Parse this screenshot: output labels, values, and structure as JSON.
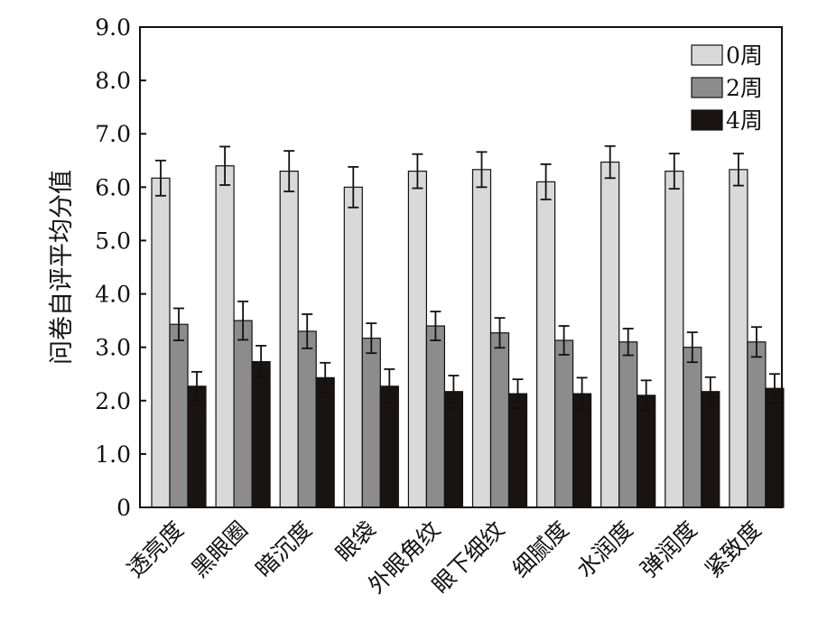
{
  "chart_data": {
    "type": "bar",
    "title": "",
    "xlabel": "",
    "ylabel": "问卷自评平均分值",
    "ylim": [
      0,
      9
    ],
    "yticks": [
      "0",
      "1.0",
      "2.0",
      "3.0",
      "4.0",
      "5.0",
      "6.0",
      "7.0",
      "8.0",
      "9.0"
    ],
    "categories": [
      "透亮度",
      "黑眼圈",
      "暗沉度",
      "眼袋",
      "外眼角纹",
      "眼下细纹",
      "细腻度",
      "水润度",
      "弹润度",
      "紧致度"
    ],
    "series": [
      {
        "name": "0周",
        "color": "#d9d9d9",
        "values": [
          6.17,
          6.4,
          6.3,
          6.0,
          6.3,
          6.33,
          6.1,
          6.47,
          6.3,
          6.33
        ],
        "errors": [
          0.33,
          0.36,
          0.38,
          0.38,
          0.32,
          0.33,
          0.33,
          0.3,
          0.33,
          0.3
        ]
      },
      {
        "name": "2周",
        "color": "#8c8c8c",
        "values": [
          3.43,
          3.5,
          3.3,
          3.17,
          3.4,
          3.27,
          3.13,
          3.1,
          3.0,
          3.1
        ],
        "errors": [
          0.3,
          0.36,
          0.32,
          0.28,
          0.27,
          0.28,
          0.27,
          0.25,
          0.28,
          0.28
        ]
      },
      {
        "name": "4周",
        "color": "#1a1313",
        "values": [
          2.27,
          2.73,
          2.43,
          2.27,
          2.17,
          2.13,
          2.13,
          2.1,
          2.17,
          2.23
        ],
        "errors": [
          0.27,
          0.3,
          0.28,
          0.32,
          0.3,
          0.27,
          0.3,
          0.28,
          0.27,
          0.27
        ]
      }
    ],
    "legend_position": "top-right",
    "grid": false
  }
}
